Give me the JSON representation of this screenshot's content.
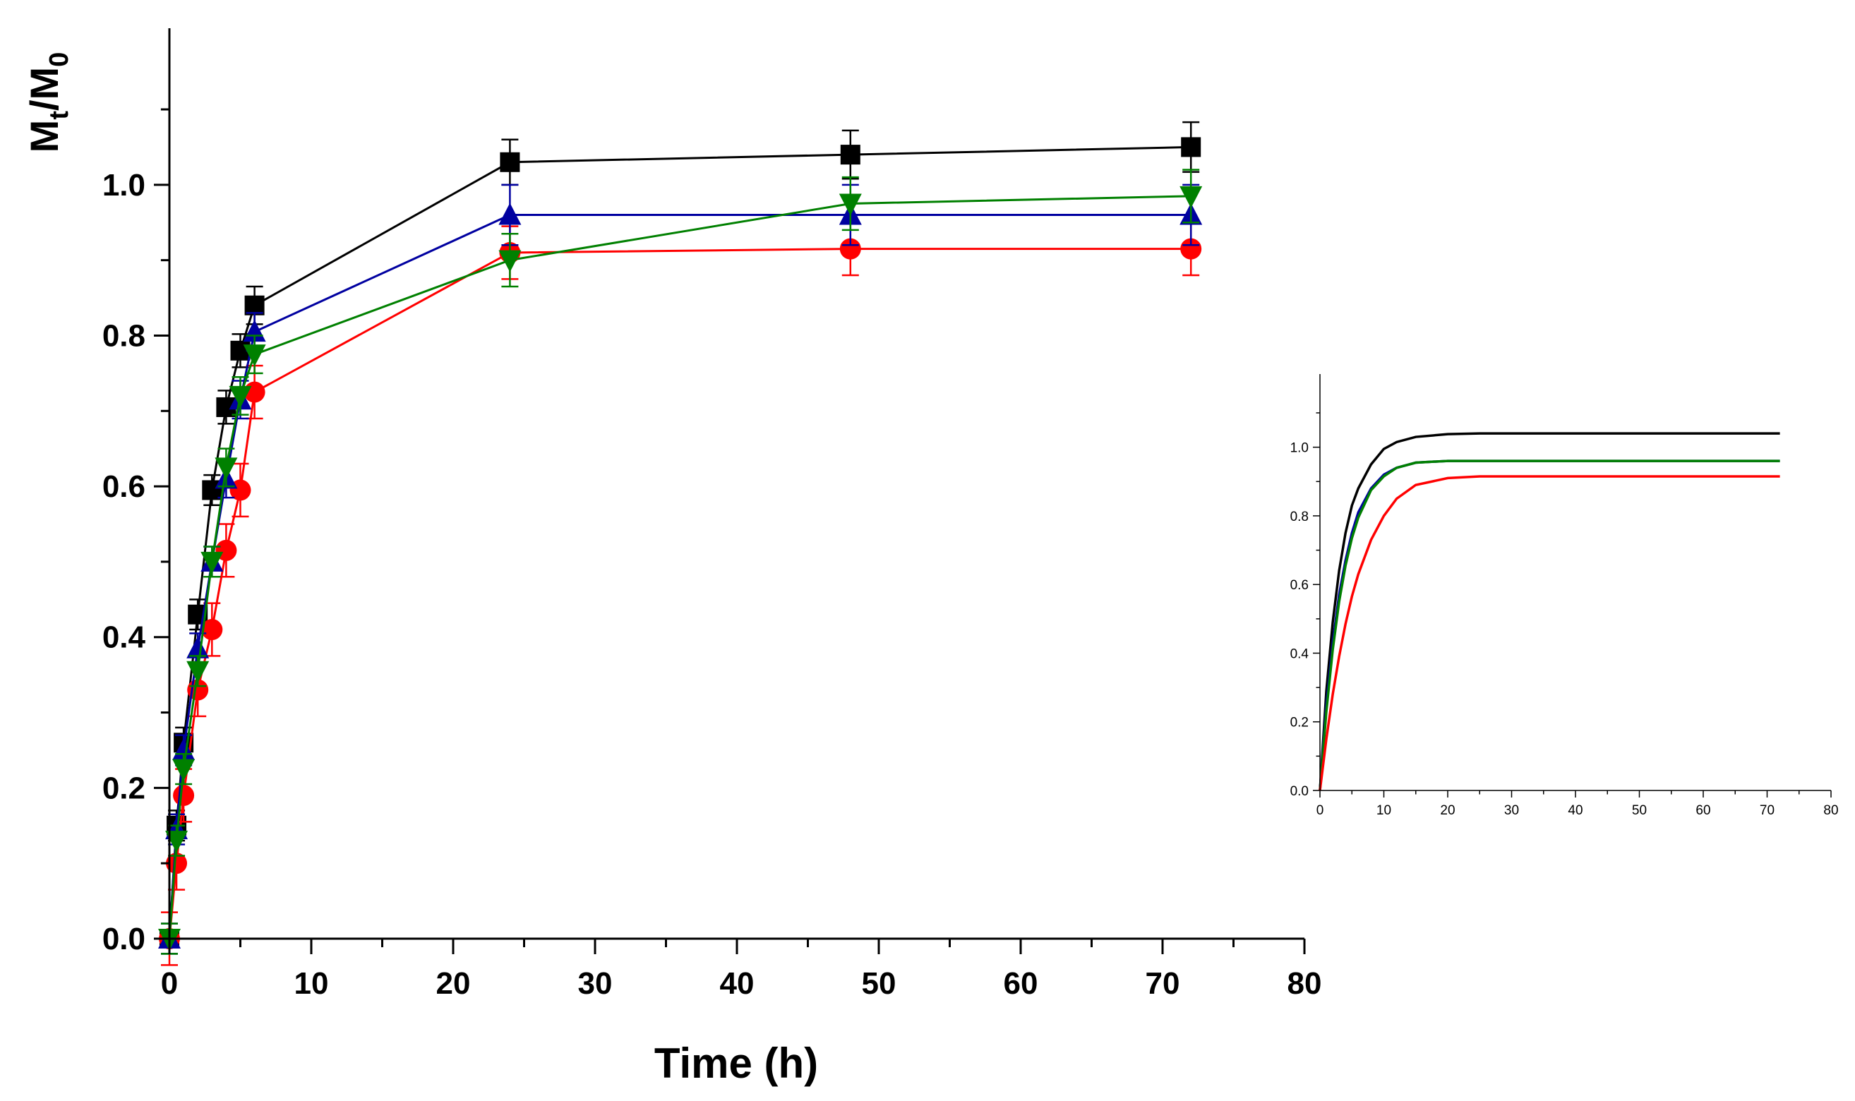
{
  "chart_data": [
    {
      "type": "line",
      "title": "",
      "xlabel": "Time (h)",
      "ylabel_parts": {
        "main1": "M",
        "sub1": "t",
        "slash": "/",
        "main2": "M",
        "sub2": "0"
      },
      "xlim": [
        0,
        80
      ],
      "ylim": [
        0,
        1.1
      ],
      "xticks": [
        0,
        10,
        20,
        30,
        40,
        50,
        60,
        70,
        80
      ],
      "yticks": [
        0.0,
        0.2,
        0.4,
        0.6,
        0.8,
        1.0
      ],
      "xtick_labels": [
        "0",
        "10",
        "20",
        "30",
        "40",
        "50",
        "60",
        "70",
        "80"
      ],
      "ytick_labels": [
        "0.0",
        "0.2",
        "0.4",
        "0.6",
        "0.8",
        "1.0"
      ],
      "grid": false,
      "legend": "none",
      "x": [
        0,
        0.5,
        1,
        2,
        3,
        4,
        5,
        6,
        24,
        48,
        72
      ],
      "series": [
        {
          "color": "#000000",
          "marker": "square",
          "values": [
            0.0,
            0.15,
            0.26,
            0.43,
            0.595,
            0.705,
            0.78,
            0.84,
            1.03,
            1.04,
            1.05
          ],
          "errors": [
            0.02,
            0.02,
            0.02,
            0.02,
            0.02,
            0.022,
            0.022,
            0.025,
            0.03,
            0.032,
            0.033
          ]
        },
        {
          "color": "#ff0000",
          "marker": "circle",
          "values": [
            0.0,
            0.1,
            0.19,
            0.33,
            0.41,
            0.515,
            0.595,
            0.725,
            0.91,
            0.915,
            0.915
          ],
          "errors": [
            0.035,
            0.035,
            0.035,
            0.035,
            0.035,
            0.035,
            0.035,
            0.035,
            0.035,
            0.035,
            0.035
          ]
        },
        {
          "color": "#0000a0",
          "marker": "triangle-up",
          "values": [
            0.0,
            0.145,
            0.25,
            0.385,
            0.5,
            0.61,
            0.715,
            0.805,
            0.96,
            0.96,
            0.96
          ],
          "errors": [
            0.02,
            0.02,
            0.02,
            0.02,
            0.02,
            0.025,
            0.025,
            0.025,
            0.04,
            0.04,
            0.04
          ]
        },
        {
          "color": "#008000",
          "marker": "triangle-down",
          "values": [
            0.0,
            0.13,
            0.225,
            0.355,
            0.5,
            0.625,
            0.72,
            0.775,
            0.9,
            0.975,
            0.985
          ],
          "errors": [
            0.02,
            0.02,
            0.02,
            0.02,
            0.02,
            0.025,
            0.025,
            0.025,
            0.035,
            0.035,
            0.035
          ]
        }
      ]
    },
    {
      "type": "line",
      "title": "",
      "xlabel": "",
      "ylabel": "",
      "xlim": [
        0,
        80
      ],
      "ylim": [
        0,
        1.1
      ],
      "xticks": [
        0,
        10,
        20,
        30,
        40,
        50,
        60,
        70,
        80
      ],
      "yticks": [
        0.0,
        0.2,
        0.4,
        0.6,
        0.8,
        1.0
      ],
      "xtick_labels": [
        "0",
        "10",
        "20",
        "30",
        "40",
        "50",
        "60",
        "70",
        "80"
      ],
      "ytick_labels": [
        "0.0",
        "0.2",
        "0.4",
        "0.6",
        "0.8",
        "1.0"
      ],
      "grid": false,
      "legend": "none",
      "x": [
        0,
        1,
        2,
        3,
        4,
        5,
        6,
        8,
        10,
        12,
        15,
        20,
        25,
        30,
        40,
        50,
        60,
        72
      ],
      "series": [
        {
          "color": "#000000",
          "values": [
            0.0,
            0.29,
            0.49,
            0.64,
            0.75,
            0.83,
            0.88,
            0.95,
            0.995,
            1.015,
            1.03,
            1.038,
            1.04,
            1.04,
            1.04,
            1.04,
            1.04,
            1.04
          ]
        },
        {
          "color": "#0000a0",
          "values": [
            0.0,
            0.25,
            0.43,
            0.57,
            0.67,
            0.75,
            0.81,
            0.88,
            0.92,
            0.94,
            0.955,
            0.96,
            0.96,
            0.96,
            0.96,
            0.96,
            0.96,
            0.96
          ]
        },
        {
          "color": "#008000",
          "values": [
            0.0,
            0.23,
            0.41,
            0.55,
            0.655,
            0.735,
            0.795,
            0.875,
            0.915,
            0.94,
            0.955,
            0.96,
            0.96,
            0.96,
            0.96,
            0.96,
            0.96,
            0.96
          ]
        },
        {
          "color": "#ff0000",
          "values": [
            0.0,
            0.15,
            0.28,
            0.39,
            0.485,
            0.565,
            0.63,
            0.73,
            0.8,
            0.85,
            0.89,
            0.91,
            0.915,
            0.915,
            0.915,
            0.915,
            0.915,
            0.915
          ]
        }
      ]
    }
  ]
}
